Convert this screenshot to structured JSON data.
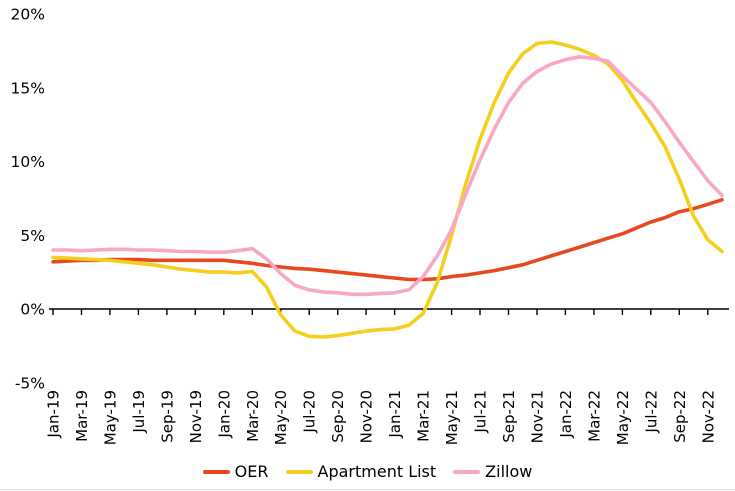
{
  "chart_data": {
    "type": "line",
    "title": "",
    "xlabel": "",
    "ylabel": "",
    "ylim": [
      -5,
      20
    ],
    "y_ticks": [
      20,
      15,
      10,
      5,
      0,
      -5
    ],
    "y_tick_suffix": "%",
    "grid": false,
    "legend_position": "bottom",
    "x_tick_step": 2,
    "x": [
      "Jan-19",
      "Feb-19",
      "Mar-19",
      "Apr-19",
      "May-19",
      "Jun-19",
      "Jul-19",
      "Aug-19",
      "Sep-19",
      "Oct-19",
      "Nov-19",
      "Dec-19",
      "Jan-20",
      "Feb-20",
      "Mar-20",
      "Apr-20",
      "May-20",
      "Jun-20",
      "Jul-20",
      "Aug-20",
      "Sep-20",
      "Oct-20",
      "Nov-20",
      "Dec-20",
      "Jan-21",
      "Feb-21",
      "Mar-21",
      "Apr-21",
      "May-21",
      "Jun-21",
      "Jul-21",
      "Aug-21",
      "Sep-21",
      "Oct-21",
      "Nov-21",
      "Dec-21",
      "Jan-22",
      "Feb-22",
      "Mar-22",
      "Apr-22",
      "May-22",
      "Jun-22",
      "Jul-22",
      "Aug-22",
      "Sep-22",
      "Oct-22",
      "Nov-22",
      "Dec-22"
    ],
    "x_tick_labels": [
      "Jan-19",
      "Mar-19",
      "May-19",
      "Jul-19",
      "Sep-19",
      "Nov-19",
      "Jan-20",
      "Mar-20",
      "May-20",
      "Jul-20",
      "Sep-20",
      "Nov-20",
      "Jan-21",
      "Mar-21",
      "May-21",
      "Jul-21",
      "Sep-21",
      "Nov-21",
      "Jan-22",
      "Mar-22",
      "May-22",
      "Jul-22",
      "Sep-22",
      "Nov-22"
    ],
    "series": [
      {
        "name": "OER",
        "color": "#E8481F",
        "values": [
          3.2,
          3.25,
          3.3,
          3.3,
          3.35,
          3.35,
          3.35,
          3.3,
          3.3,
          3.3,
          3.3,
          3.3,
          3.3,
          3.2,
          3.1,
          2.95,
          2.85,
          2.75,
          2.7,
          2.6,
          2.5,
          2.4,
          2.3,
          2.2,
          2.1,
          2.0,
          2.0,
          2.05,
          2.2,
          2.3,
          2.45,
          2.6,
          2.8,
          3.0,
          3.3,
          3.6,
          3.9,
          4.2,
          4.5,
          4.8,
          5.1,
          5.5,
          5.9,
          6.2,
          6.6,
          6.8,
          7.1,
          7.4
        ]
      },
      {
        "name": "Apartment List",
        "color": "#F4CF1E",
        "values": [
          3.5,
          3.45,
          3.4,
          3.35,
          3.3,
          3.2,
          3.1,
          3.0,
          2.85,
          2.7,
          2.6,
          2.5,
          2.5,
          2.45,
          2.55,
          1.5,
          -0.4,
          -1.5,
          -1.85,
          -1.9,
          -1.8,
          -1.65,
          -1.5,
          -1.4,
          -1.35,
          -1.1,
          -0.3,
          1.8,
          5.0,
          8.5,
          11.5,
          14.0,
          16.0,
          17.3,
          18.0,
          18.1,
          17.9,
          17.6,
          17.2,
          16.6,
          15.5,
          14.0,
          12.6,
          11.0,
          8.8,
          6.3,
          4.7,
          3.9
        ]
      },
      {
        "name": "Zillow",
        "color": "#F8A7C6",
        "values": [
          4.0,
          4.0,
          3.95,
          4.0,
          4.05,
          4.05,
          4.0,
          4.0,
          3.95,
          3.9,
          3.9,
          3.85,
          3.85,
          3.95,
          4.1,
          3.4,
          2.4,
          1.6,
          1.3,
          1.15,
          1.1,
          1.0,
          1.0,
          1.05,
          1.1,
          1.3,
          2.2,
          3.6,
          5.4,
          7.8,
          10.1,
          12.2,
          14.0,
          15.3,
          16.1,
          16.6,
          16.9,
          17.1,
          17.0,
          16.8,
          15.8,
          14.9,
          14.0,
          12.7,
          11.3,
          10.0,
          8.7,
          7.7
        ]
      }
    ]
  }
}
